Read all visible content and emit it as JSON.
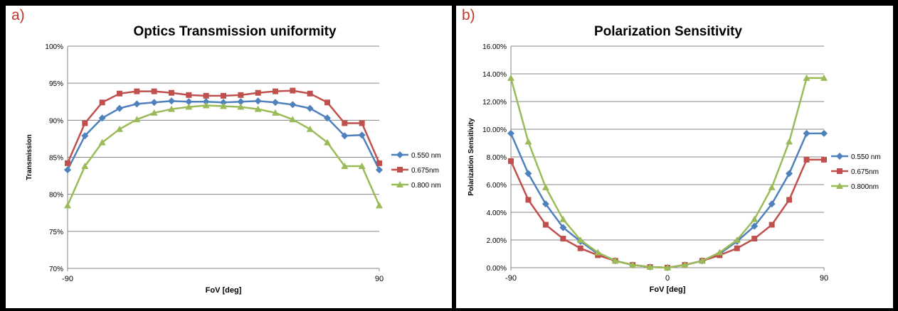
{
  "chart_data": [
    {
      "type": "line",
      "panel_letter": "a)",
      "title": "Optics Transmission uniformity",
      "xlabel": "FoV [deg]",
      "ylabel": "Transmission",
      "x_tick_labels": [
        "-90",
        "90"
      ],
      "y_tick_labels": [
        "70%",
        "75%",
        "80%",
        "85%",
        "90%",
        "95%",
        "100%"
      ],
      "xlim": [
        -90,
        90
      ],
      "ylim": [
        70,
        100
      ],
      "x": [
        -90,
        -80,
        -70,
        -60,
        -50,
        -40,
        -30,
        -20,
        -10,
        0,
        10,
        20,
        30,
        40,
        50,
        60,
        70,
        80,
        90
      ],
      "grid": true,
      "legend_position": "right",
      "series": [
        {
          "name": "0.550 nm",
          "color": "#4f81bd",
          "marker": "diamond",
          "values": [
            83.3,
            87.9,
            90.3,
            91.6,
            92.2,
            92.4,
            92.6,
            92.5,
            92.5,
            92.4,
            92.5,
            92.6,
            92.4,
            92.1,
            91.6,
            90.3,
            87.9,
            88.0,
            83.3
          ]
        },
        {
          "name": "0.675nm",
          "color": "#c0504d",
          "marker": "square",
          "values": [
            84.2,
            89.6,
            92.4,
            93.6,
            93.9,
            93.9,
            93.7,
            93.4,
            93.3,
            93.3,
            93.4,
            93.7,
            93.9,
            94.0,
            93.6,
            92.4,
            89.6,
            89.6,
            84.2
          ]
        },
        {
          "name": "0.800 nm",
          "color": "#9bbb59",
          "marker": "triangle",
          "values": [
            78.5,
            83.8,
            87.0,
            88.8,
            90.1,
            91.0,
            91.5,
            91.8,
            92.0,
            91.9,
            91.8,
            91.5,
            91.0,
            90.1,
            88.8,
            87.0,
            83.8,
            83.8,
            78.5
          ]
        }
      ]
    },
    {
      "type": "line",
      "panel_letter": "b)",
      "title": "Polarization Sensitivity",
      "xlabel": "FoV [deg]",
      "ylabel": "Polarization Sensitivity",
      "x_tick_labels": [
        "-90",
        "0",
        "90"
      ],
      "y_tick_labels": [
        "0.00%",
        "2.00%",
        "4.00%",
        "6.00%",
        "8.00%",
        "10.00%",
        "12.00%",
        "14.00%",
        "16.00%"
      ],
      "xlim": [
        -90,
        90
      ],
      "ylim": [
        0,
        16
      ],
      "x": [
        -90,
        -80,
        -70,
        -60,
        -50,
        -40,
        -30,
        -20,
        -10,
        0,
        10,
        20,
        30,
        40,
        50,
        60,
        70,
        80,
        90
      ],
      "grid": true,
      "legend_position": "right",
      "series": [
        {
          "name": "0.550 nm",
          "color": "#4f81bd",
          "marker": "diamond",
          "values": [
            9.7,
            6.8,
            4.6,
            2.9,
            1.9,
            1.0,
            0.5,
            0.2,
            0.05,
            0.0,
            0.2,
            0.5,
            1.0,
            1.9,
            3.0,
            4.6,
            6.8,
            9.7,
            9.7
          ]
        },
        {
          "name": "0.675nm",
          "color": "#c0504d",
          "marker": "square",
          "values": [
            7.7,
            4.9,
            3.1,
            2.1,
            1.4,
            0.9,
            0.5,
            0.2,
            0.05,
            0.0,
            0.2,
            0.5,
            0.9,
            1.4,
            2.1,
            3.1,
            4.9,
            7.8,
            7.8
          ]
        },
        {
          "name": "0.800nm",
          "color": "#9bbb59",
          "marker": "triangle",
          "values": [
            13.7,
            9.1,
            5.8,
            3.5,
            2.0,
            1.1,
            0.5,
            0.2,
            0.05,
            0.0,
            0.2,
            0.5,
            1.1,
            2.0,
            3.5,
            5.8,
            9.1,
            13.7,
            13.7
          ]
        }
      ]
    }
  ]
}
